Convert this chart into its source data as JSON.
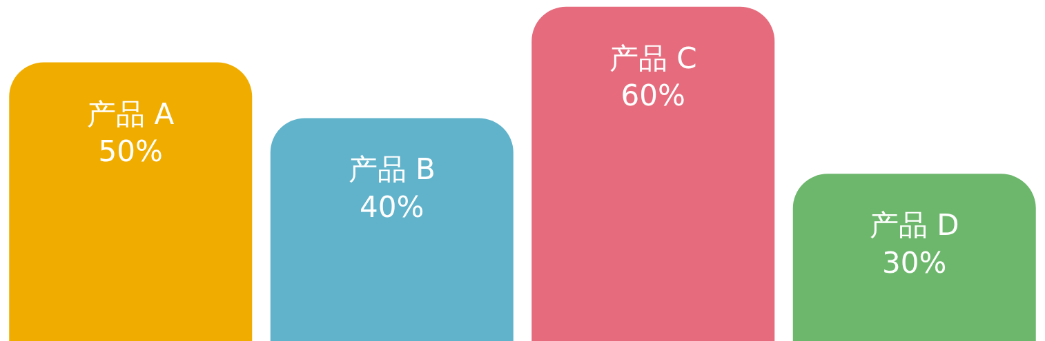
{
  "chart_data": {
    "type": "bar",
    "categories": [
      "产品 A",
      "产品 B",
      "产品 C",
      "产品 D"
    ],
    "values": [
      50,
      40,
      60,
      30
    ],
    "value_labels": [
      "50%",
      "40%",
      "60%",
      "30%"
    ],
    "colors": [
      "#f0ad00",
      "#60b3cb",
      "#e66c7d",
      "#6db76d"
    ],
    "legend": false
  }
}
